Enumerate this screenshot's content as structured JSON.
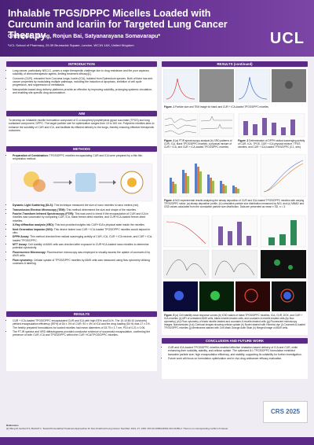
{
  "header": {
    "title": "Inhalable TPGS/DPPC Micelles Loaded with Curcumin and Icariin for Targeted Lung Cancer Therapy",
    "authors": "Chengwei Jiang, Ronjun Bai, Satyanarayana Somavarapu*",
    "affiliation": "¹UCL School of Pharmacy, 29-39 Brunswick Square, London, WC1N 1AX, United Kingdom",
    "logo": "UCL"
  },
  "introduction": {
    "heading": "INTRODUCTION",
    "bullets": [
      "Lung cancer, particularly NSCLC, poses a major therapeutic challenge due to drug resistance and the poor aqueous solubility of chemotherapeutic agents, limiting treatment efficacy[1].",
      "Curcumin (CUR), extracted from Curcuma longa, Icariin (ICA), isolated from Epimedium species. Both of them has anti-cancer properties by modulating multiple pathways, including the induction of apoptosis, inhibition of cell cycle progression, and suppression of metastasis.",
      "Nanoparticle-based drug delivery platforms provide an effective by improving solubility, prolonging systemic circulation, and enabling site-specific drug accumulation."
    ]
  },
  "aim": {
    "heading": "AIM",
    "text": "To develop an inhalable micelle formulation composed of D-α-tocopheryl polyethylene glycol succinate (TPGS) and lung surfactant component, DPPC. The target particle size for optimization ranges from 10 to 160 nm. Polymeric micelles aims to enhance the solubility of CUR and ICA, and facilitate its efficient delivery to the lungs, thereby ensuring effective therapeutic outcomes."
  },
  "methods": {
    "heading": "METHODS",
    "preparation": [
      {
        "term": "Preparation of Combination:",
        "text": " TPGS/DPPC micelles encapsulating CUR and ICA were prepared by a thin film rehydration method."
      }
    ],
    "items": [
      {
        "term": "Dynamic Light Scattering (DLS):",
        "text": " This technique measured the size of nano micelles in nano meters (nm)."
      },
      {
        "term": "Transmission Electron Microscopy (TEM):",
        "text": " This method determined the size and shape of the micelles."
      },
      {
        "term": "Fourier-Transform Infrared Spectroscopy (FTIR):",
        "text": " This was used to check if the encapsulation of CUR and ICA in micelles was successful by comparing CUR, ICA, blank freeze-dried micelles, and CUR+ICA-loaded freeze-dried micelles."
      },
      {
        "term": "X-Ray diffraction analysis (XRD):",
        "text": " This test provided insights into CUR+ICA's physical state inside the micelles."
      },
      {
        "term": "Next Generation Impactor (NGI):",
        "text": " This device tested how CUR + ICA-loaded TPGS/DPPC micelles would deposit in vitro."
      },
      {
        "term": "DPPH Assay:",
        "text": " This method checked free radical scavenging activity of CUR, ICA, CUR + ICA mixture, and CUR + ICA-loaded TPGS/DPPC."
      },
      {
        "term": "MTT Assay:",
        "text": " Cell viability of A549 cells was checked after exposure to CUR+ICA-loaded nano micelles to determine potential cytotoxicity."
      },
      {
        "term": "Fluorescence Microscopy:",
        "text": " Fluorescence microscopy was employed to visually assess the uptake of coumarin-6 by A549 cells."
      },
      {
        "term": "Flow cytometry:",
        "text": " Cellular uptake of TPGS/DPPC micelles by A549 cells was measured using flow cytometry utilizing coumarin-6 labeling."
      }
    ]
  },
  "results": {
    "heading": "RESULTS",
    "bullets": [
      "CUR + ICA-loaded TPGS/DPPC encapsulated CUR and ICA with high EE% and DL%. The 10:10:80:10 (w/w/w/w) yielded encapsulation efficiency (EE%) of 84 ± 3% of CUR, 90 ± 4% of ICA and the drug loading (DL%) was 17 ± 1%. The freshly prepared formulations for loaded micelles had mean diameters of 15.79 ± 1.7 nm, PDI of 0.21 ± 0.06.",
      "The FT-IR spectra and XRD diffractograms provided conclusive evidence of successful encapsulation, confirming the presence of both CUR, ICA and TPGS/DPPC within the CUR +ICA/TPGS/DPPC micelles."
    ]
  },
  "results_continued": {
    "heading": "RESULTS (continued)",
    "figures": [
      {
        "label": "Figure. 1",
        "text": " Particle size and TEM image for blank and CUR + ICA-loaded TPGS/DPPC micelles"
      },
      {
        "label": "Figure. 2",
        "text": " (a) FTIR spectroscopy analysis (b) XRD patterns of CUR, ICA, blank TPGS/DPPC micelles, a physical mixture of CUR + ICA, and CUR + ICA-loaded TPGS/DPPC micelles."
      },
      {
        "label": "Figure. 3",
        "text": " Determination of DPPH radical scavenging activity of CUR, ICA, TPGS, CUR + ICA physical mixture, TPGS micelles, and CUR + ICA-loaded TPGS/DPPC (0.1, w/w)"
      },
      {
        "label": "Figure. 4",
        "text": " NGI experimental results analyzing the airway deposition of CUR and ICA-loaded TPGS/DPPC micelles with varying TPGS/DPPC ratios: (a) airway deposition profile, (b) cumulative particle size distribution measured by NGI, and (c) MMAD and GSD values calculated from the cumulative particle size distribution. Data are presented as mean ± SD, n = 3."
      },
      {
        "label": "Figure. 5",
        "text": " (a) Cell viability dose-response curves (b) IC50 values of blank TPGS/DPPC micelles, ICA, CUR, DOX, and CUR + ICA-micelles (c) MFI of untreated A549 cells, blank micelle-treated cells, and coumarin-6 micelle-treated cells (by flow cytometry) (d-f) Flow cytometry of blank micelle-treated and coumarin-6 micelle-treated cells (g) Fluorescent microscopy images: Nanovesicles (h-k) Confocal images showing cellular uptake (h) Nuclei stained with Hoechst dye (i) Coumarin-6-loaded TPGS/DPPC micelles (j) Membranes stained with Cell Mask Orange Actin Stain (k) Merged image of A549 cells."
      }
    ]
  },
  "conclusion": {
    "heading": "CONCLUSION AND FUTURE WORK",
    "bullets": [
      "CUR and ICA-loaded TPGS/DPPC micelles enabled effective inhalation-based delivery of ICA and CUR, while enhancing their solubility, stability, and cellular uptake. The optimized 8:1 TPGS/DPPC formulation exhibited favorable particle size, high encapsulation efficiency, and stability, supporting its suitability for further investigation.",
      "Future work will focus on formulation optimization and in vivo drug anticancer efficacy evaluation."
    ]
  },
  "references": {
    "heading": "References",
    "text": "[1] Wang M, Herbst R S, Boshoff C. Toward Personalized Treatment Approaches for Non-Small-Cell Lung Cancer. Nat Med. 2021, 27, 1345. DOI:10.1038/s41591-021-01450-2. There is no corresponding conflict of interest."
  },
  "footer_logo": "CRS 2025"
}
